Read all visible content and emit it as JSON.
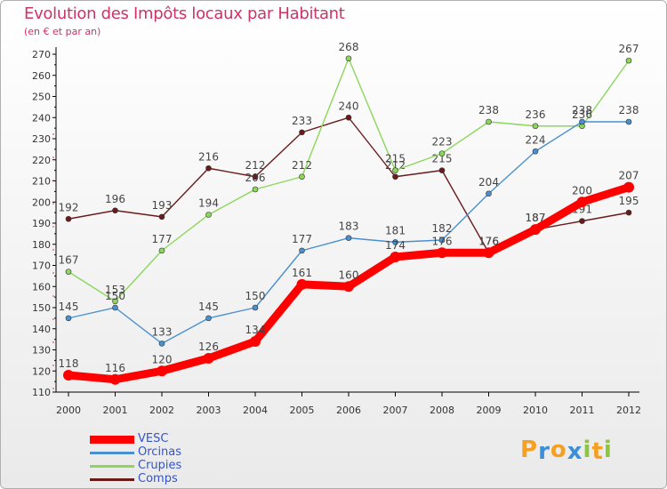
{
  "header": {
    "title": "Evolution des Impôts locaux par Habitant",
    "subtitle": "(en € et par an)"
  },
  "logo": {
    "letters": [
      "P",
      "r",
      "o",
      "x",
      "i",
      "t",
      "i"
    ],
    "colors": [
      "#f5a023",
      "#3a8fd8",
      "#f5a023",
      "#3a8fd8",
      "#8cc63f",
      "#f5a023",
      "#8cc63f"
    ]
  },
  "chart_data": {
    "type": "line",
    "title": "Evolution des Impôts locaux par Habitant",
    "subtitle": "(en € et par an)",
    "xlabel": "",
    "ylabel": "",
    "categories": [
      "2000",
      "2001",
      "2002",
      "2003",
      "2004",
      "2005",
      "2006",
      "2007",
      "2008",
      "2009",
      "2010",
      "2011",
      "2012"
    ],
    "ylim": [
      110,
      270
    ],
    "yticks": [
      110,
      120,
      130,
      140,
      150,
      160,
      170,
      180,
      190,
      200,
      210,
      220,
      230,
      240,
      250,
      260,
      270
    ],
    "grid": false,
    "legend_position": "bottom-left",
    "series": [
      {
        "name": "Comps",
        "color": "#6b1a1a",
        "values": [
          192,
          196,
          193,
          216,
          212,
          233,
          240,
          212,
          215,
          176,
          187,
          191,
          195
        ],
        "labels": [
          "192",
          "196",
          "193",
          "216",
          "212",
          "233",
          "240",
          "212",
          "215",
          "176",
          "187",
          "191",
          "195"
        ]
      },
      {
        "name": "Crupies",
        "color": "#8cd65a",
        "values": [
          167,
          153,
          177,
          194,
          206,
          212,
          268,
          215,
          223,
          238,
          236,
          236,
          267
        ],
        "labels": [
          "167",
          "153",
          "177",
          "194",
          "206",
          "212",
          "268",
          "215",
          "223",
          "238",
          "236",
          "236",
          "267"
        ]
      },
      {
        "name": "Orcinas",
        "color": "#4a90d0",
        "values": [
          145,
          150,
          133,
          145,
          150,
          177,
          183,
          181,
          182,
          204,
          224,
          238,
          238
        ],
        "labels": [
          "145",
          "150",
          "133",
          "145",
          "150",
          "177",
          "183",
          "181",
          "182",
          "204",
          "224",
          "238",
          "238"
        ]
      },
      {
        "name": "VESC",
        "color": "#ff0000",
        "values": [
          118,
          116,
          120,
          126,
          134,
          161,
          160,
          174,
          176,
          176,
          187,
          200,
          207
        ],
        "labels": [
          "118",
          "116",
          "120",
          "126",
          "134",
          "161",
          "160",
          "174",
          "176",
          "176",
          "187",
          "200",
          "207"
        ]
      }
    ],
    "legend_order": [
      "VESC",
      "Orcinas",
      "Crupies",
      "Comps"
    ]
  }
}
